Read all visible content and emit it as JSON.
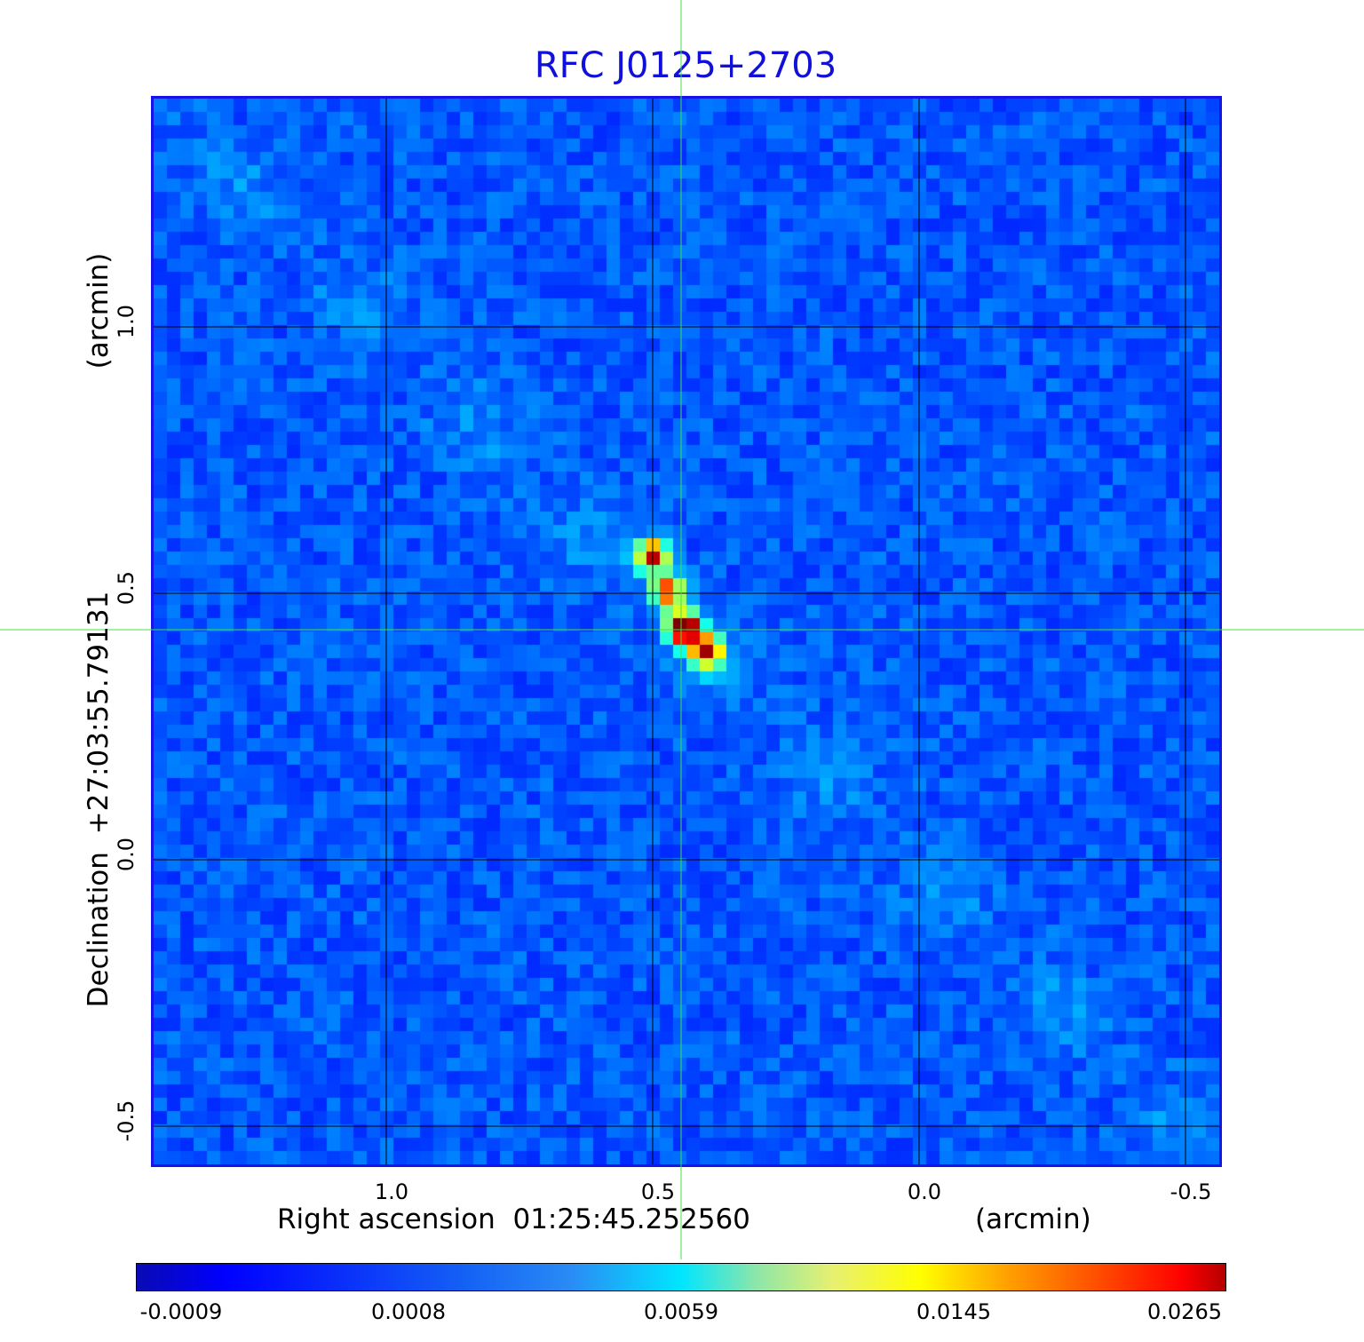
{
  "title": "RFC J0125+2703",
  "x_axis": {
    "label": "Right ascension  01:25:45.252560",
    "unit": "(arcmin)",
    "ticks": [
      {
        "value": 1.0,
        "label": "1.0"
      },
      {
        "value": 0.5,
        "label": "0.5"
      },
      {
        "value": 0.0,
        "label": "0.0"
      },
      {
        "value": -0.5,
        "label": "-0.5"
      }
    ]
  },
  "y_axis": {
    "label": "Declination  +27:03:55.79131",
    "unit": "(arcmin)",
    "ticks": [
      {
        "value": 1.0,
        "label": "1.0"
      },
      {
        "value": 0.5,
        "label": "0.5"
      },
      {
        "value": 0.0,
        "label": "0.0"
      },
      {
        "value": -0.5,
        "label": "-0.5"
      }
    ]
  },
  "colorbar": {
    "colormap": "jet",
    "labels": [
      "-0.0009",
      "0.0008",
      "0.0059",
      "0.0145",
      "0.0265"
    ]
  },
  "colors": {
    "title": "#1010d8",
    "frame": "#1414e6",
    "crosshair": "#44e044",
    "grid": "#000000"
  }
}
